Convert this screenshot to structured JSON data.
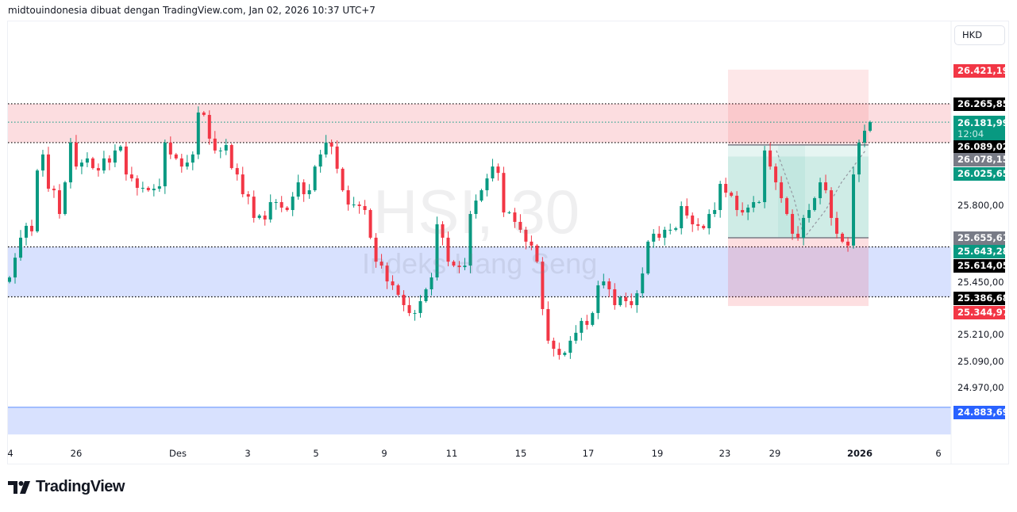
{
  "header": {
    "attribution": "midtouindonesia dibuat dengan TradingView.com, Jan 02, 2026 10:37 UTC+7"
  },
  "currency_button": "HKD",
  "watermark": {
    "symbol": "HSI, 30",
    "name": "Indeks Hang Seng"
  },
  "logo": {
    "text": "TradingView"
  },
  "colors": {
    "up": "#089981",
    "down": "#f23645",
    "resistance_zone": "#fcdde0",
    "support_zone": "#d8e1fe",
    "support_line": "#5b8cff"
  },
  "price_labels": [
    {
      "text": "26.421,19",
      "price": 26421.19,
      "color": "#f23645"
    },
    {
      "text": "26.265,85",
      "price": 26265.85,
      "color": "#000000"
    },
    {
      "text": "26.089,02",
      "price": 26089.02,
      "color": "#000000"
    },
    {
      "text": "26.078,15",
      "price": 26078.15,
      "color": "#787b86"
    },
    {
      "text": "26.025,65",
      "price": 26025.65,
      "color": "#089981"
    },
    {
      "text": "25.655,61",
      "price": 25655.61,
      "color": "#787b86"
    },
    {
      "text": "25.643,28",
      "price": 25643.28,
      "color": "#089981"
    },
    {
      "text": "25.614,05",
      "price": 25614.05,
      "color": "#000000"
    },
    {
      "text": "25.386,68",
      "price": 25386.68,
      "color": "#000000"
    },
    {
      "text": "25.344,97",
      "price": 25344.97,
      "color": "#f23645"
    },
    {
      "text": "24.883,69",
      "price": 24883.69,
      "color": "#2962ff"
    }
  ],
  "last_price": {
    "text": "26.181,99",
    "countdown": "12:04",
    "price": 26181.99
  },
  "chart_data": {
    "type": "candlestick",
    "title": "HSI, 30",
    "y_ticks": [
      "25.800,00",
      "25.450,00",
      "25.210,00",
      "25.090,00",
      "24.970,00"
    ],
    "y_tick_values": [
      25800,
      25450,
      25210,
      25090,
      24970
    ],
    "x_ticks": [
      "4",
      "26",
      "Des",
      "3",
      "5",
      "9",
      "11",
      "15",
      "17",
      "19",
      "23",
      "29",
      "2026",
      "6"
    ],
    "ylim": [
      24790,
      26480
    ],
    "grid": false,
    "zones": [
      {
        "kind": "resistance",
        "top": 26265.85,
        "bottom": 26089.02
      },
      {
        "kind": "support",
        "top": 25614.05,
        "bottom": 25386.68
      },
      {
        "kind": "support",
        "top": 24883.69,
        "bottom": 24760
      }
    ],
    "position_tool": {
      "stop_top": 26421.19,
      "entry_upper": 26078.15,
      "target_upper": 26025.65,
      "entry_lower": 25655.61,
      "stop_bottom": 25344.97
    },
    "closes": [
      25475,
      25565,
      25656,
      25710,
      25685,
      25962,
      26035,
      25879,
      25872,
      25764,
      25908,
      26089,
      25980,
      25998,
      26017,
      25973,
      25962,
      26017,
      25998,
      26053,
      26071,
      25944,
      25926,
      25883,
      25883,
      25872,
      25879,
      25890,
      26089,
      26035,
      26017,
      25980,
      25998,
      26035,
      26226,
      26215,
      26107,
      26053,
      26053,
      26078,
      25973,
      25944,
      25854,
      25843,
      25746,
      25757,
      25739,
      25818,
      25818,
      25793,
      25782,
      25843,
      25908,
      25854,
      25872,
      25980,
      26035,
      26089,
      26071,
      25970,
      25872,
      25807,
      25807,
      25800,
      25782,
      25656,
      25547,
      25529,
      25457,
      25439,
      25396,
      25349,
      25313,
      25313,
      25367,
      25421,
      25475,
      25717,
      25656,
      25547,
      25529,
      25522,
      25529,
      25764,
      25825,
      25872,
      25926,
      25980,
      25951,
      25771,
      25771,
      25728,
      25692,
      25638,
      25620,
      25547,
      25331,
      25187,
      25150,
      25122,
      25132,
      25187,
      25223,
      25277,
      25259,
      25313,
      25439,
      25457,
      25421,
      25349,
      25385,
      25367,
      25349,
      25403,
      25493,
      25638,
      25674,
      25656,
      25692,
      25692,
      25699,
      25800,
      25757,
      25717,
      25710,
      25699,
      25764,
      25782,
      25901,
      25861,
      25847,
      25782,
      25771,
      25793,
      25818,
      25818,
      26053,
      25980,
      25908,
      25836,
      25764,
      25674,
      25656,
      25746,
      25782,
      25836,
      25908,
      25872,
      25746,
      25674,
      25638,
      25620,
      25944,
      26089,
      26143,
      26182
    ]
  }
}
